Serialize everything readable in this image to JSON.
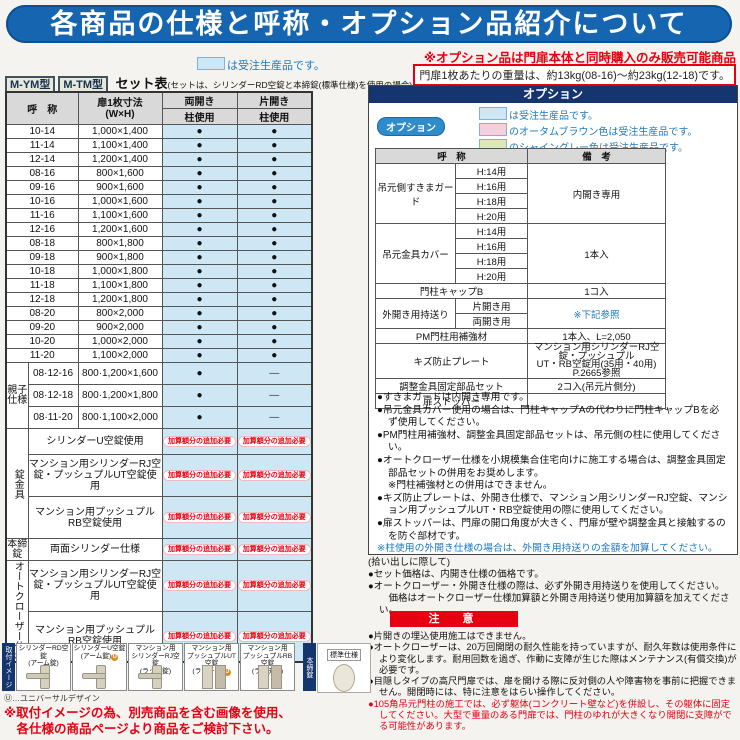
{
  "page": {
    "title": "各商品の仕様と呼称・オプション品紹介について"
  },
  "top_right": {
    "option_note": "※オプション品は門扉本体と同時購入のみ販売可能商品",
    "weight_note": "門扉1枚あたりの重量は、約13kg(08-16)～約23kg(12-18)です。"
  },
  "left": {
    "legend_note": "は受注生産品です。",
    "model_badges": [
      "M-YM型",
      "M-TM型"
    ],
    "set_table_title": "セット表",
    "set_table_subtitle": "(セットは、シリンダーRD空錠と本締錠(標準仕様)を使用の場合)",
    "set_table": {
      "headers": {
        "name": "呼　称",
        "size": "扉1枚寸法\n(W×H)",
        "double": "両開き",
        "single": "片開き",
        "pillar": "柱使用"
      },
      "dot": "●",
      "dash": "—",
      "size_rows": [
        {
          "name": "10-14",
          "size": "1,000×1,400"
        },
        {
          "name": "11-14",
          "size": "1,100×1,400"
        },
        {
          "name": "12-14",
          "size": "1,200×1,400"
        },
        {
          "name": "08-16",
          "size": "800×1,600"
        },
        {
          "name": "09-16",
          "size": "900×1,600"
        },
        {
          "name": "10-16",
          "size": "1,000×1,600"
        },
        {
          "name": "11-16",
          "size": "1,100×1,600"
        },
        {
          "name": "12-16",
          "size": "1,200×1,600"
        },
        {
          "name": "08-18",
          "size": "800×1,800"
        },
        {
          "name": "09-18",
          "size": "900×1,800"
        },
        {
          "name": "10-18",
          "size": "1,000×1,800"
        },
        {
          "name": "11-18",
          "size": "1,100×1,800"
        },
        {
          "name": "12-18",
          "size": "1,200×1,800"
        },
        {
          "name": "08-20",
          "size": "800×2,000"
        },
        {
          "name": "09-20",
          "size": "900×2,000"
        },
        {
          "name": "10-20",
          "size": "1,000×2,000"
        },
        {
          "name": "11-20",
          "size": "1,100×2,000"
        }
      ],
      "oyako_label": "親子\n仕様",
      "oyako_rows": [
        {
          "name": "08·12-16",
          "size": "800·1,200×1,600"
        },
        {
          "name": "08·12-18",
          "size": "800·1,200×1,800"
        },
        {
          "name": "08·11-20",
          "size": "800·1,100×2,000"
        }
      ],
      "surcharge": "加算額分の追加必要",
      "lock_groups": [
        {
          "label": "錠金具",
          "vertical": true,
          "rows": [
            "シリンダーU空錠使用",
            "マンション用シリンダーRJ空錠・プッシュプルUT空錠使用",
            "マンション用プッシュプルRB空錠使用"
          ]
        },
        {
          "label": "本締錠",
          "vertical": false,
          "rows": [
            "両面シリンダー仕様"
          ]
        },
        {
          "label": "オートクローザー仕様",
          "vertical": true,
          "rows": [
            "マンション用シリンダーRJ空錠・プッシュプルUT空錠使用",
            "マンション用プッシュプルRB空錠使用"
          ]
        }
      ]
    }
  },
  "options": {
    "bar_title": "オプション",
    "badge_label": "オプション",
    "legend": [
      {
        "color": "#cde7f5",
        "text": "は受注生産品です。"
      },
      {
        "color": "#f7cedd",
        "text": "のオータムブラウン色は受注生産品です。"
      },
      {
        "color": "#dce8b8",
        "text": "のシャイングレー色は受注生産品です。"
      }
    ],
    "table": {
      "header_name": "呼　称",
      "header_remark": "備　考",
      "groups": [
        {
          "name": "吊元側すきまガード",
          "subs": [
            "H:14用",
            "H:16用",
            "H:18用",
            "H:20用"
          ],
          "remark": "内開き専用"
        },
        {
          "name": "吊元金具カバー",
          "subs": [
            "H:14用",
            "H:16用",
            "H:18用",
            "H:20用"
          ],
          "remark": "1本入"
        },
        {
          "name": "門柱キャップB",
          "subs": [],
          "remark": "1コ入"
        },
        {
          "name": "外開き用持送り",
          "subs": [
            "片開き用",
            "両開き用"
          ],
          "remark": "※下記参照",
          "blue": true
        },
        {
          "name": "PM門柱用補強材",
          "subs": [],
          "remark": "1本入、L=2,050"
        },
        {
          "name": "キズ防止プレート",
          "subs": [],
          "remark": "マンション用シリンダーRJ空錠・プッシュプル\nUT・RB空錠用(35用・40用) P.2665参照",
          "small": true
        },
        {
          "name": "調整金具固定部品セット",
          "subs": [],
          "remark": "2コ入(吊元片側分)"
        },
        {
          "name": "扉ストッパー",
          "subs": [],
          "remark": ""
        }
      ]
    },
    "notes": [
      {
        "t": "●すきまガードは内開き専用です。"
      },
      {
        "t": "●吊元金具カバー使用の場合は、門柱キャップAの代わりに門柱キャップBを必ず使用してください。"
      },
      {
        "t": "●PM門柱用補強材、調整金具固定部品セットは、吊元側の柱に使用してください。"
      },
      {
        "t": "●オートクローザー仕様を小規模集合住宅向けに施工する場合は、調整金具固定部品セットの併用をお奨めします。"
      },
      {
        "t": "※門柱補強材との併用はできません。",
        "i": true
      },
      {
        "t": "●キズ防止プレートは、外開き仕様で、マンション用シリンダーRJ空錠、マンション用プッシュプルUT・RB空錠使用の際に使用してください。"
      },
      {
        "t": "●扉ストッパーは、門扉の開口角度が大きく、門扉が壁や調整金具と接触するのを防ぐ部材です。"
      },
      {
        "t": "※柱使用の外開き仕様の場合は、外開き用持送りの金額を加算してください。",
        "c": "blue"
      }
    ]
  },
  "pickup": {
    "title": "(拾い出しに際して)",
    "lines": [
      {
        "t": "●セット価格は、内開き仕様の価格です。"
      },
      {
        "t": "●オートクローザー・外開き仕様の際は、必ず外開き用持送りを使用してください。"
      },
      {
        "t": "　価格はオートクローザー仕様加算額と外開き用持送り使用加算額を加えてください。",
        "i": true
      }
    ]
  },
  "caution": {
    "title": "注　意",
    "notes": [
      {
        "t": "●片開きの埋込使用施工はできません。"
      },
      {
        "t": "●オートクローザーは、20万回開閉の耐久性能を持っていますが、耐久年数は使用条件により変化します。耐用回数を過ぎ、作動に支障が生じた際はメンテナンス(有償交換)が必要です。"
      },
      {
        "t": "●目隠しタイプの高尺門扉では、扉を開ける際に反対側の人や障害物を事前に把握できません。開閉時には、特に注意をはらい操作してください。"
      },
      {
        "t": "●105角吊元門柱の施工では、必ず躯体(コンクリート壁など)を併設し、その躯体に固定してください。大型で重量のある門扉では、門柱のゆれが大きくなり開閉に支障がでる可能性があります。",
        "c": "red"
      }
    ]
  },
  "products": {
    "strip_label": "取付イメージ",
    "items": [
      {
        "name": "シリンダーRD空錠",
        "sub": "(アーム錠)",
        "ud": false,
        "icon": "lever"
      },
      {
        "name": "シリンダーU空錠",
        "sub": "(アーム錠)",
        "ud": true,
        "icon": "lever"
      },
      {
        "name": "マンション用\nシリンダーRJ空錠",
        "sub": "(ラッチ錠)",
        "ud": false,
        "icon": "lever"
      },
      {
        "name": "マンション用\nプッシュプルUT空錠",
        "sub": "(ラッチ錠)",
        "ud": true,
        "icon": "pushpull"
      },
      {
        "name": "マンション用\nプッシュプルRB空錠",
        "sub": "(ラッチ錠)",
        "ud": false,
        "icon": "pushpull"
      }
    ],
    "honjime_label": "本締錠",
    "standard_label": "標準仕様",
    "ud_note": "Ⓤ…ユニバーサルデザイン",
    "red_note": "※取付イメージの為、別売商品を含む画像を使用、\n　各仕様の商品ページより商品をご検討下さい。"
  }
}
